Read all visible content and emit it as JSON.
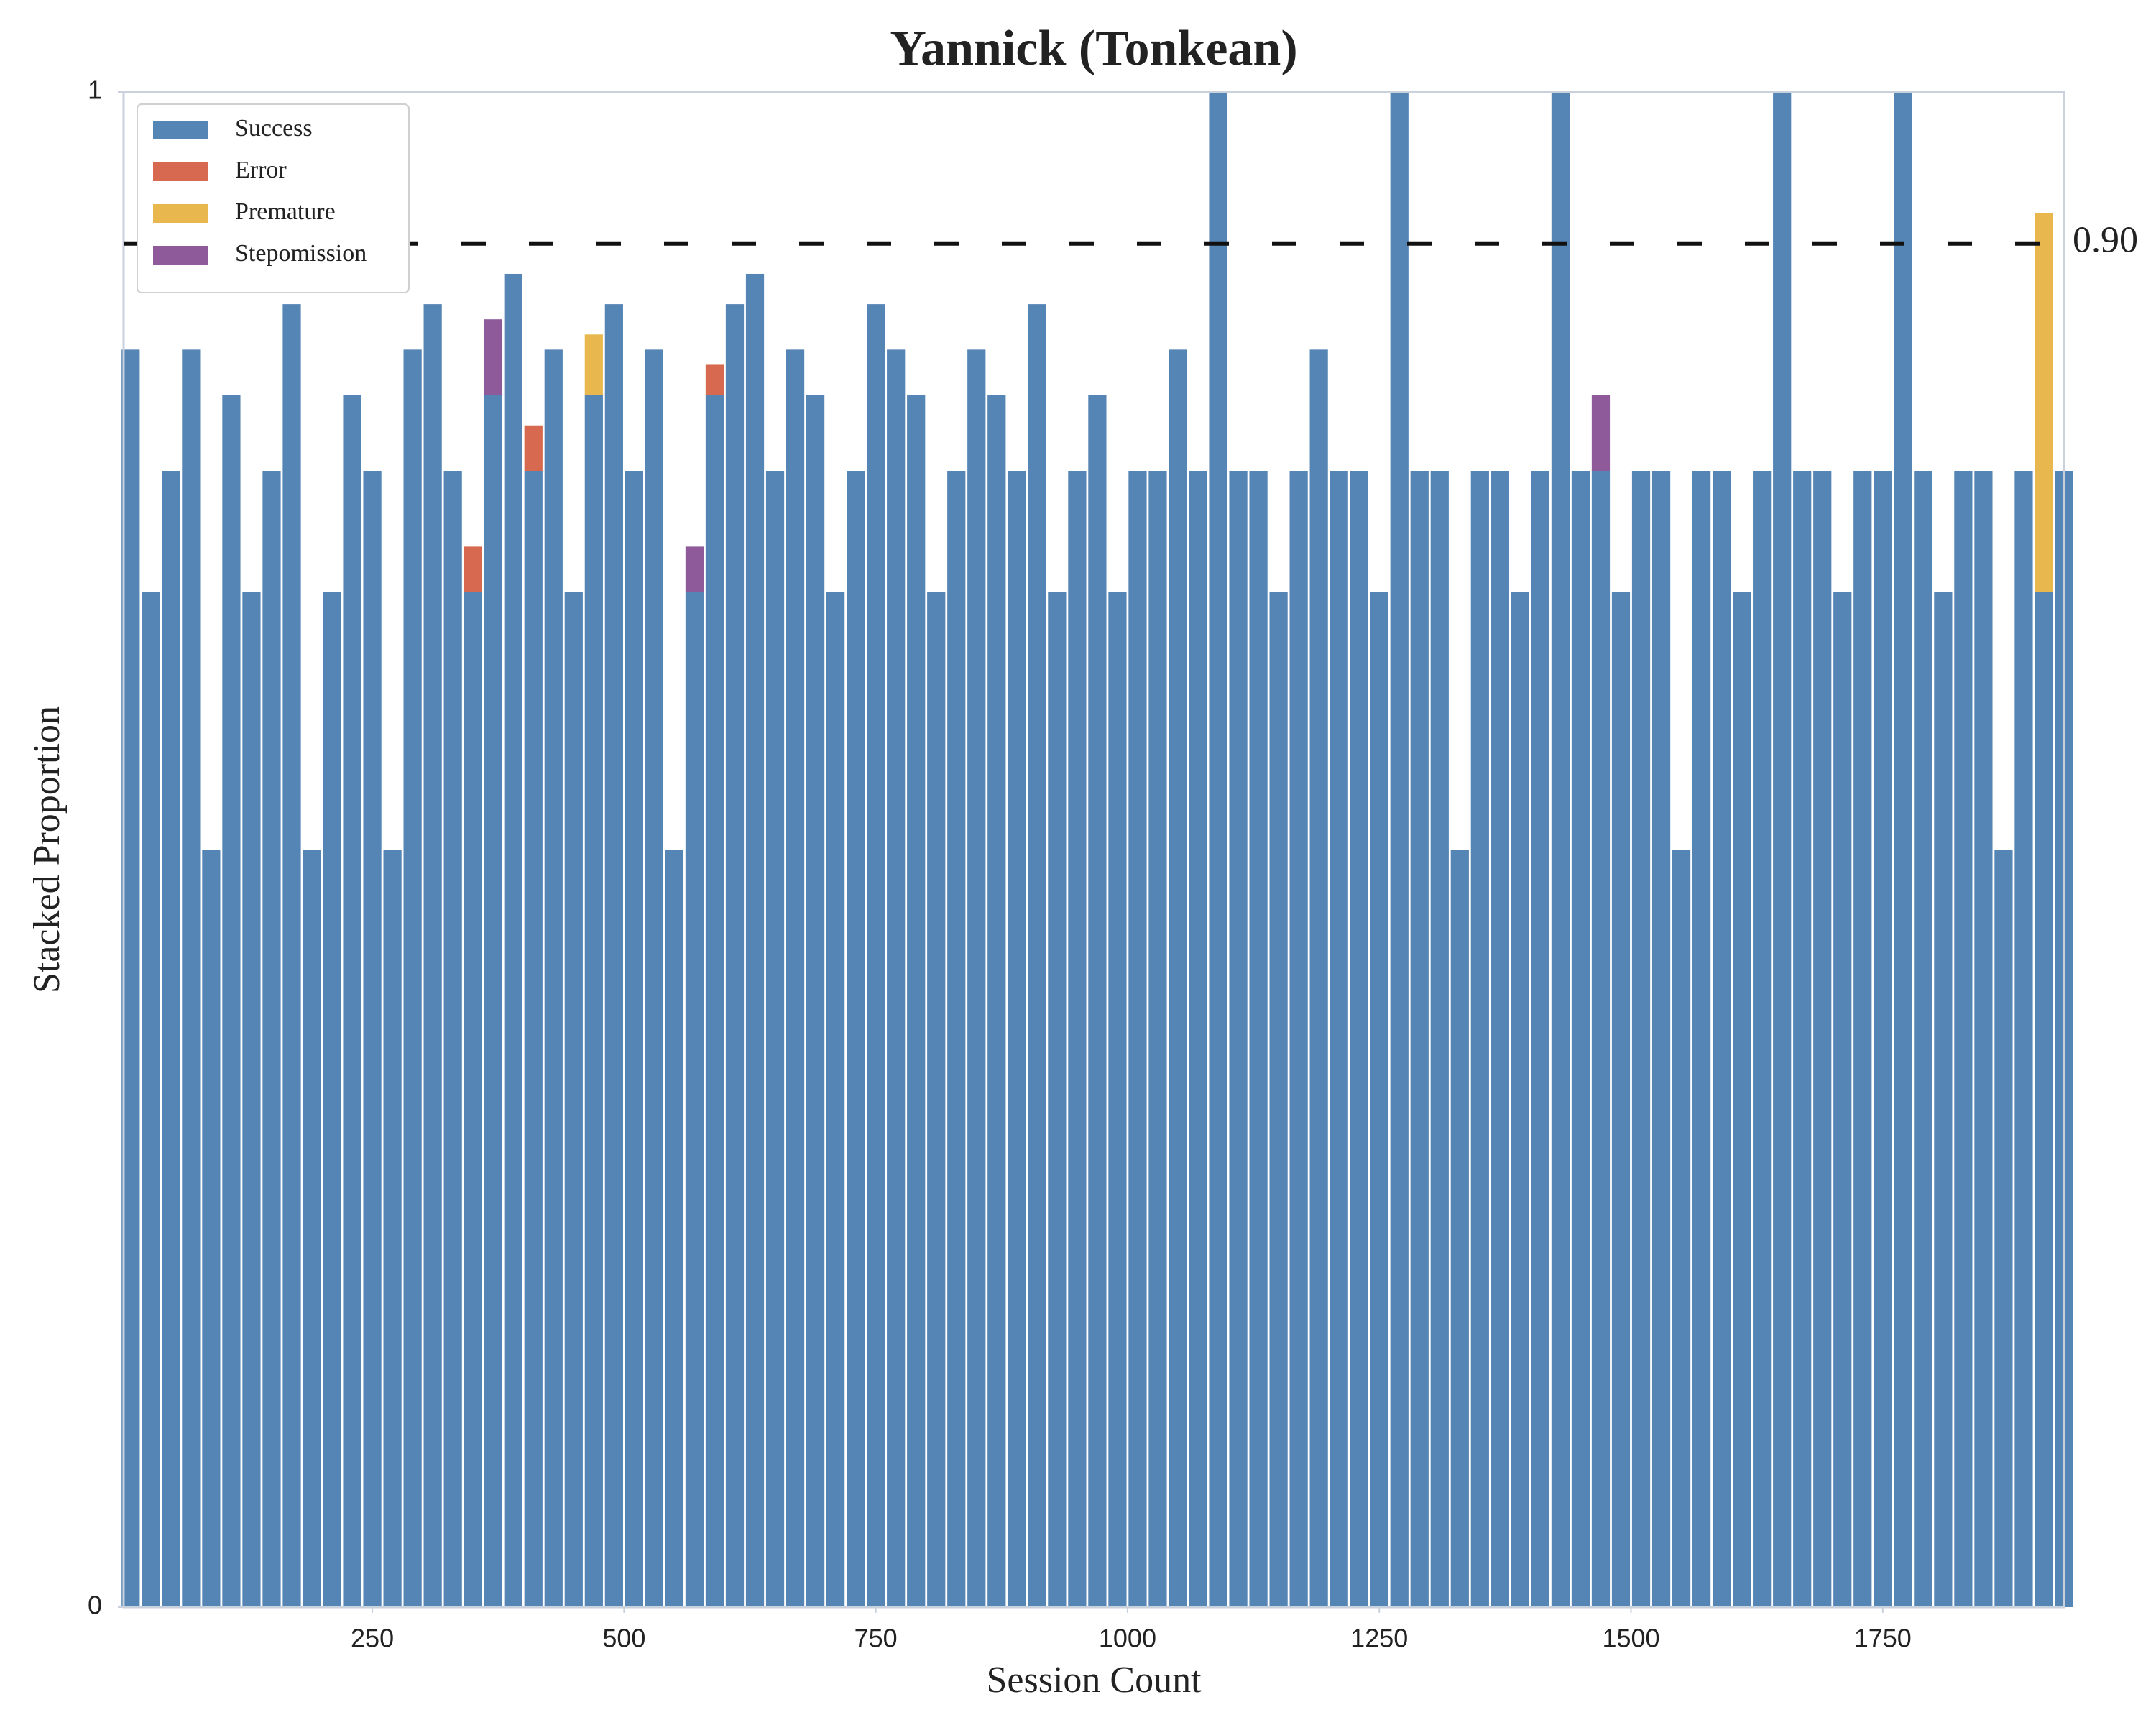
{
  "chart_data": {
    "type": "stacked_bar",
    "title": "Yannick (Tonkean)",
    "x_label": "Session Count",
    "y_label": "Stacked Proportion",
    "x": [
      10,
      30,
      50,
      70,
      90,
      110,
      130,
      150,
      170,
      190,
      210,
      230,
      250,
      270,
      290,
      310,
      330,
      350,
      370,
      390,
      410,
      430,
      450,
      470,
      490,
      510,
      530,
      550,
      570,
      590,
      610,
      630,
      650,
      670,
      690,
      710,
      730,
      750,
      770,
      790,
      810,
      830,
      850,
      870,
      890,
      910,
      930,
      950,
      970,
      990,
      1010,
      1030,
      1050,
      1070,
      1090,
      1110,
      1130,
      1150,
      1170,
      1190,
      1210,
      1230,
      1250,
      1270,
      1290,
      1310,
      1330,
      1350,
      1370,
      1390,
      1410,
      1430,
      1450,
      1470,
      1490,
      1510,
      1530,
      1550,
      1570,
      1590,
      1610,
      1630,
      1650,
      1670,
      1690,
      1710,
      1730,
      1750,
      1770,
      1790,
      1810,
      1830,
      1850,
      1870,
      1890,
      1910,
      1930
    ],
    "series": [
      {
        "name": "Success",
        "color": "#5585b5",
        "values": [
          0.83,
          0.67,
          0.75,
          0.83,
          0.5,
          0.8,
          0.67,
          0.75,
          0.86,
          0.5,
          0.67,
          0.8,
          0.75,
          0.5,
          0.83,
          0.86,
          0.75,
          0.67,
          0.8,
          0.88,
          0.75,
          0.83,
          0.67,
          0.8,
          0.86,
          0.75,
          0.83,
          0.5,
          0.67,
          0.8,
          0.86,
          0.88,
          0.75,
          0.83,
          0.8,
          0.67,
          0.75,
          0.86,
          0.83,
          0.8,
          0.67,
          0.75,
          0.83,
          0.8,
          0.75,
          0.86,
          0.67,
          0.75,
          0.8,
          0.67,
          0.75,
          0.75,
          0.83,
          0.75,
          1,
          0.75,
          0.75,
          0.67,
          0.75,
          0.83,
          0.75,
          0.75,
          0.67,
          1,
          0.75,
          0.75,
          0.5,
          0.75,
          0.75,
          0.67,
          0.75,
          1,
          0.75,
          0.75,
          0.67,
          0.75,
          0.75,
          0.5,
          0.75,
          0.75,
          0.67,
          0.75,
          1,
          0.75,
          0.75,
          0.67,
          0.75,
          0.75,
          1,
          0.75,
          0.67,
          0.75,
          0.75,
          0.5,
          0.75,
          0.67,
          0.75
        ]
      },
      {
        "name": "Error",
        "color": "#d6694f",
        "values": [
          0,
          0,
          0,
          0,
          0,
          0,
          0,
          0,
          0,
          0,
          0,
          0,
          0,
          0,
          0,
          0,
          0,
          0.03,
          0,
          0,
          0.03,
          0,
          0,
          0,
          0,
          0,
          0,
          0,
          0,
          0.02,
          0,
          0,
          0,
          0,
          0,
          0,
          0,
          0,
          0,
          0,
          0,
          0,
          0,
          0,
          0,
          0,
          0,
          0,
          0,
          0,
          0,
          0,
          0,
          0,
          0,
          0,
          0,
          0,
          0,
          0,
          0,
          0,
          0,
          0,
          0,
          0,
          0,
          0,
          0,
          0,
          0,
          0,
          0,
          0,
          0,
          0,
          0,
          0,
          0,
          0,
          0,
          0,
          0,
          0,
          0,
          0,
          0,
          0,
          0,
          0,
          0,
          0,
          0,
          0,
          0,
          0,
          0
        ]
      },
      {
        "name": "Premature",
        "color": "#e8b84f",
        "values": [
          0,
          0,
          0,
          0,
          0,
          0,
          0,
          0,
          0,
          0,
          0,
          0,
          0,
          0,
          0,
          0,
          0,
          0,
          0,
          0,
          0,
          0,
          0,
          0.04,
          0,
          0,
          0,
          0,
          0,
          0,
          0,
          0,
          0,
          0,
          0,
          0,
          0,
          0,
          0,
          0,
          0,
          0,
          0,
          0,
          0,
          0,
          0,
          0,
          0,
          0,
          0,
          0,
          0,
          0,
          0,
          0,
          0,
          0,
          0,
          0,
          0,
          0,
          0,
          0,
          0,
          0,
          0,
          0,
          0,
          0,
          0,
          0,
          0,
          0,
          0,
          0,
          0,
          0,
          0,
          0,
          0,
          0,
          0,
          0,
          0,
          0,
          0,
          0,
          0,
          0,
          0,
          0,
          0,
          0,
          0,
          0.25,
          0
        ]
      },
      {
        "name": "Stepomission",
        "color": "#8e5a9a",
        "values": [
          0,
          0,
          0,
          0,
          0,
          0,
          0,
          0,
          0,
          0,
          0,
          0,
          0,
          0,
          0,
          0,
          0,
          0,
          0.05,
          0,
          0,
          0,
          0,
          0,
          0,
          0,
          0,
          0,
          0.03,
          0,
          0,
          0,
          0,
          0,
          0,
          0,
          0,
          0,
          0,
          0,
          0,
          0,
          0,
          0,
          0,
          0,
          0,
          0,
          0,
          0,
          0,
          0,
          0,
          0,
          0,
          0,
          0,
          0,
          0,
          0,
          0,
          0,
          0,
          0,
          0,
          0,
          0,
          0,
          0,
          0,
          0,
          0,
          0,
          0.05,
          0,
          0,
          0,
          0,
          0,
          0,
          0,
          0,
          0,
          0,
          0,
          0,
          0,
          0,
          0,
          0,
          0,
          0,
          0,
          0,
          0,
          0,
          0
        ]
      }
    ],
    "xlim": [
      3,
      1930
    ],
    "ylim": [
      0,
      1
    ],
    "xticks": [
      250,
      500,
      750,
      1000,
      1250,
      1500,
      1750
    ],
    "yticks": [
      0,
      1
    ],
    "threshold": {
      "value": 0.9,
      "label": "0.90"
    },
    "legend": "upper left",
    "grid": false
  }
}
